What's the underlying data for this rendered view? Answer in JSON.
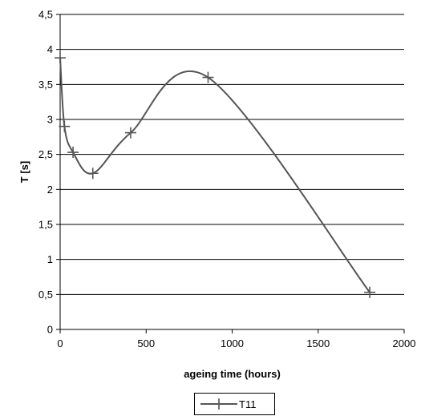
{
  "chart_data": {
    "type": "line",
    "title": "",
    "xlabel": "ageing time (hours)",
    "ylabel": "T [s]",
    "xlim": [
      0,
      2000
    ],
    "ylim": [
      0,
      4.5
    ],
    "x_ticks": [
      0,
      500,
      1000,
      1500,
      2000
    ],
    "x_tick_labels": [
      "0",
      "500",
      "1000",
      "1500",
      "2000"
    ],
    "y_ticks": [
      0,
      0.5,
      1,
      1.5,
      2,
      2.5,
      3,
      3.5,
      4,
      4.5
    ],
    "y_tick_labels": [
      "0",
      "0,5",
      "1",
      "1,5",
      "2",
      "2,5",
      "3",
      "3,5",
      "4",
      "4,5"
    ],
    "grid": "horizontal",
    "legend_position": "bottom",
    "smooth": true,
    "series": [
      {
        "name": "T11",
        "color": "#555555",
        "marker": "plus",
        "x": [
          0,
          25,
          75,
          190,
          410,
          860,
          1800
        ],
        "y": [
          3.88,
          2.9,
          2.53,
          2.23,
          2.81,
          3.6,
          0.53
        ]
      }
    ]
  }
}
